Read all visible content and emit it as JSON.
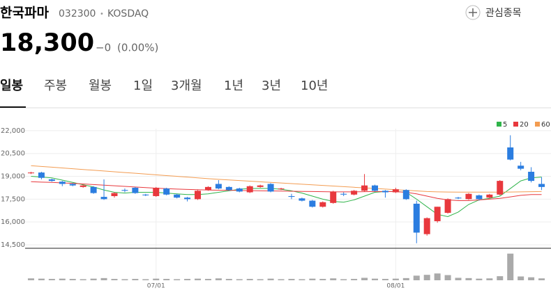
{
  "header": {
    "name": "한국파마",
    "code": "032300",
    "separator": "•",
    "market": "KOSDAQ",
    "watch": "관심종목",
    "price": "18,300",
    "change": "−0",
    "change_pct": "(0.00%)"
  },
  "tabs": [
    "일봉",
    "주봉",
    "월봉",
    "1일",
    "3개월",
    "1년",
    "3년",
    "10년"
  ],
  "chart_data": {
    "type": "candlestick",
    "categories": [
      null,
      null,
      null,
      null,
      null,
      null,
      null,
      null,
      null,
      null,
      null,
      null,
      "07/01",
      null,
      null,
      null,
      null,
      null,
      null,
      null,
      null,
      null,
      null,
      null,
      null,
      null,
      null,
      null,
      null,
      null,
      null,
      null,
      null,
      null,
      null,
      "08/01",
      null,
      null,
      null,
      null,
      null,
      null,
      null,
      null,
      null,
      null,
      null,
      null,
      null,
      null
    ],
    "open": [
      19200,
      19250,
      18800,
      18650,
      18500,
      18300,
      18300,
      17650,
      17700,
      18100,
      18250,
      17800,
      17700,
      18200,
      17800,
      17600,
      17500,
      18100,
      18500,
      18300,
      18200,
      17950,
      18300,
      18500,
      18150,
      17700,
      17550,
      17400,
      17000,
      17250,
      17850,
      17800,
      18050,
      18400,
      18050,
      17950,
      18100,
      17200,
      15200,
      16050,
      16600,
      17600,
      17500,
      17750,
      17600,
      17800,
      20900,
      19700,
      19300,
      18500
    ],
    "high": [
      19300,
      19300,
      18850,
      18700,
      18550,
      18450,
      18350,
      18800,
      17950,
      18200,
      18300,
      17850,
      18300,
      18250,
      17850,
      17650,
      18100,
      18350,
      18750,
      18350,
      18250,
      18400,
      18450,
      18550,
      18250,
      17850,
      17600,
      17450,
      17350,
      18050,
      17950,
      18100,
      19150,
      18450,
      18100,
      18250,
      18150,
      17400,
      16300,
      17000,
      17550,
      17650,
      17900,
      17800,
      17850,
      18750,
      21700,
      19950,
      19600,
      18950
    ],
    "low": [
      19150,
      18800,
      18650,
      18350,
      18350,
      18250,
      17850,
      17450,
      17600,
      17950,
      17850,
      17700,
      17650,
      17750,
      17550,
      17350,
      17450,
      18050,
      18150,
      18050,
      17950,
      17900,
      18250,
      17950,
      18100,
      17500,
      17350,
      16950,
      16950,
      17200,
      17700,
      17750,
      18000,
      18000,
      17600,
      17900,
      17450,
      14600,
      15100,
      15950,
      16550,
      17500,
      17450,
      17400,
      17550,
      17750,
      20050,
      19400,
      18600,
      18100
    ],
    "close": [
      19250,
      18900,
      18700,
      18500,
      18400,
      18400,
      17900,
      17500,
      17900,
      18050,
      17900,
      17750,
      18250,
      17800,
      17600,
      17500,
      18050,
      18300,
      18200,
      18100,
      18000,
      18350,
      18400,
      18000,
      18200,
      17650,
      17400,
      17000,
      17300,
      18000,
      17800,
      18050,
      18400,
      18050,
      17950,
      18150,
      17500,
      15300,
      16250,
      17000,
      17500,
      17550,
      17850,
      17500,
      17800,
      18700,
      20100,
      19500,
      18700,
      18300
    ],
    "up_color": "#e8383d",
    "down_color": "#2b7de0",
    "ylim": [
      14270,
      22820
    ],
    "yticks": [
      {
        "value": 14500,
        "label": "14,500"
      },
      {
        "value": 16000,
        "label": "16,000"
      },
      {
        "value": 17500,
        "label": "17,500"
      },
      {
        "value": 19000,
        "label": "19,000"
      },
      {
        "value": 20500,
        "label": "20,500"
      },
      {
        "value": 22000,
        "label": "22,000"
      }
    ],
    "grid": true,
    "series": [
      {
        "name": "5",
        "color": "#2fb44a",
        "values": [
          19000,
          18950,
          18900,
          18750,
          18600,
          18450,
          18300,
          18100,
          17950,
          17900,
          17950,
          17950,
          17950,
          17900,
          17850,
          17800,
          17800,
          17850,
          17950,
          18050,
          18150,
          18200,
          18200,
          18200,
          18150,
          18050,
          17900,
          17700,
          17500,
          17350,
          17300,
          17450,
          17700,
          17950,
          18000,
          18000,
          17950,
          17500,
          17000,
          16500,
          16350,
          16650,
          17150,
          17450,
          17550,
          17700,
          18200,
          18700,
          18900,
          18950
        ]
      },
      {
        "name": "20",
        "color": "#e8383d",
        "values": [
          18650,
          18620,
          18600,
          18570,
          18540,
          18500,
          18460,
          18420,
          18380,
          18340,
          18300,
          18260,
          18220,
          18190,
          18160,
          18140,
          18120,
          18100,
          18090,
          18080,
          18070,
          18060,
          18050,
          18040,
          18030,
          18020,
          18010,
          18000,
          17990,
          17980,
          17980,
          17980,
          17990,
          18000,
          18000,
          17990,
          17950,
          17850,
          17700,
          17550,
          17450,
          17400,
          17400,
          17450,
          17500,
          17550,
          17650,
          17750,
          17800,
          17800
        ]
      },
      {
        "name": "60",
        "color": "#f39c51",
        "values": [
          19700,
          19650,
          19600,
          19550,
          19500,
          19450,
          19400,
          19350,
          19300,
          19250,
          19200,
          19150,
          19100,
          19050,
          19000,
          18950,
          18900,
          18850,
          18800,
          18760,
          18720,
          18680,
          18640,
          18600,
          18560,
          18520,
          18480,
          18440,
          18400,
          18360,
          18320,
          18280,
          18240,
          18200,
          18160,
          18120,
          18080,
          18040,
          18000,
          17980,
          17970,
          17960,
          17960,
          17960,
          17960,
          17960,
          17970,
          17980,
          17990,
          18000
        ]
      }
    ],
    "volume": {
      "color": "#aaaaaa",
      "ylim": [
        0,
        1100000
      ],
      "values": [
        70000,
        60000,
        50000,
        60000,
        50000,
        40000,
        60000,
        80000,
        50000,
        40000,
        50000,
        40000,
        60000,
        50000,
        40000,
        50000,
        60000,
        50000,
        70000,
        50000,
        40000,
        50000,
        40000,
        60000,
        40000,
        50000,
        40000,
        60000,
        50000,
        70000,
        40000,
        50000,
        90000,
        60000,
        50000,
        60000,
        80000,
        170000,
        200000,
        250000,
        190000,
        90000,
        80000,
        60000,
        70000,
        150000,
        980000,
        140000,
        110000,
        70000
      ]
    }
  }
}
